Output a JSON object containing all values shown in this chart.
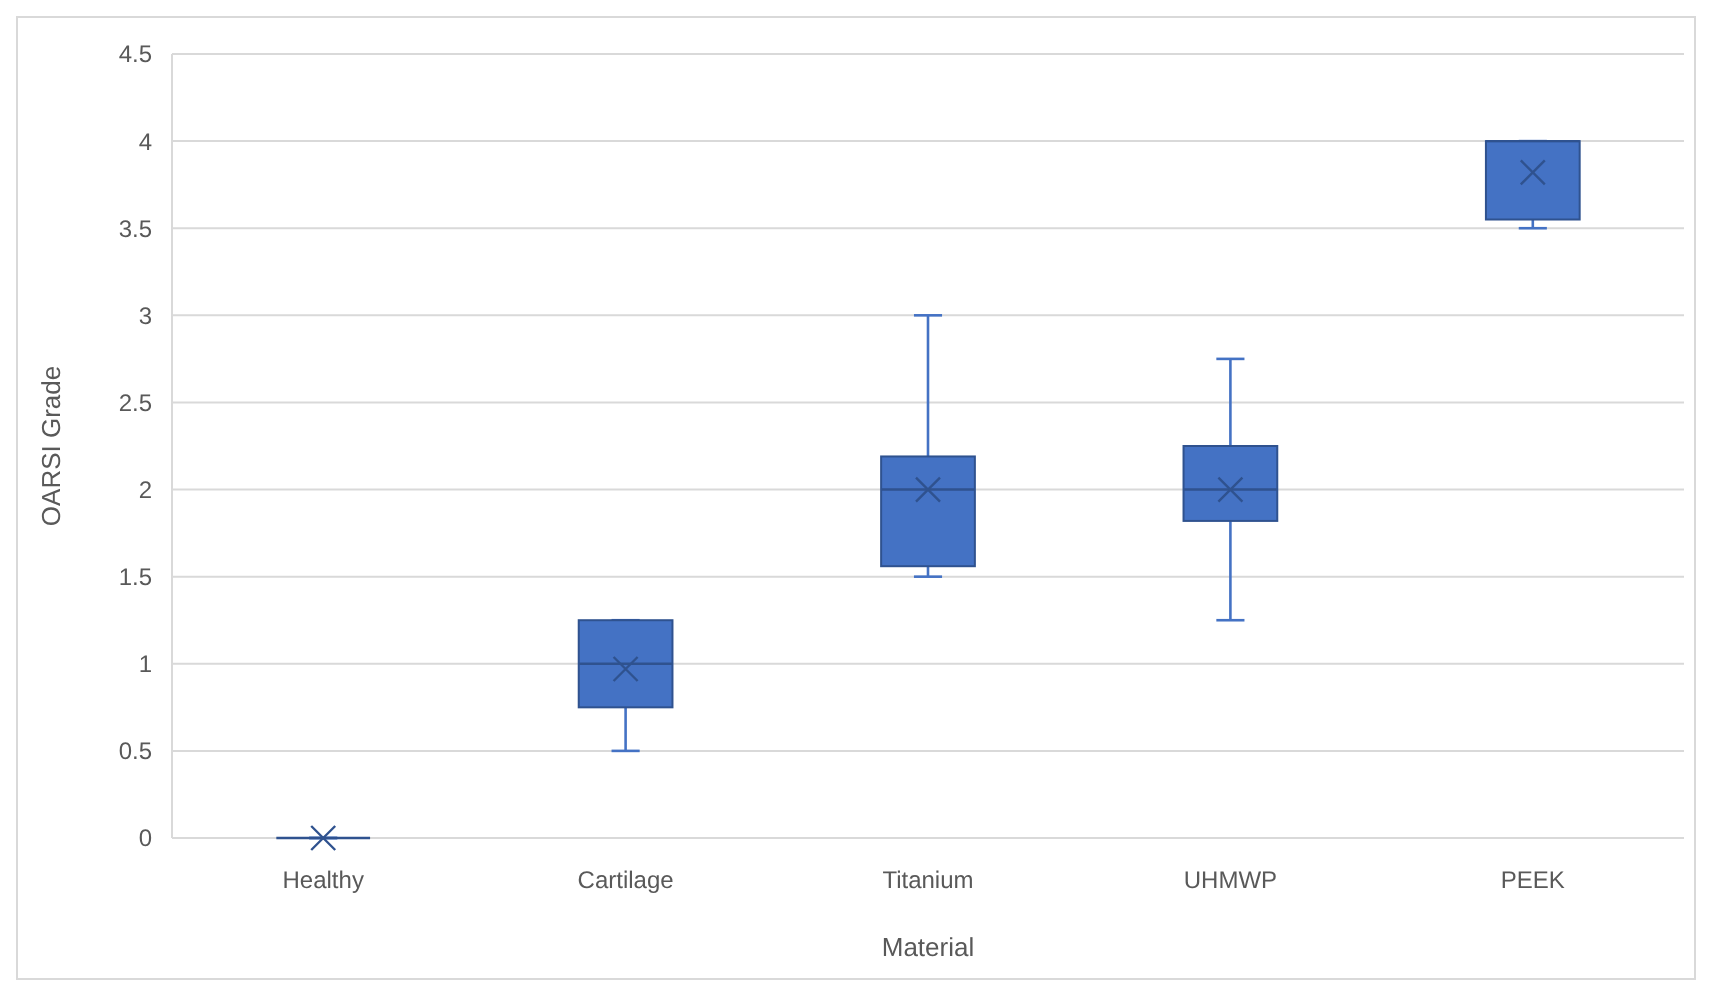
{
  "chart_data": {
    "type": "box",
    "xlabel": "Material",
    "ylabel": "OARSI Grade",
    "categories": [
      "Healthy",
      "Cartilage",
      "Titanium",
      "UHMWP",
      "PEEK"
    ],
    "series": [
      {
        "color": "#4472c4",
        "boxes": [
          {
            "low": 0,
            "q1": 0,
            "median": 0,
            "q3": 0,
            "high": 0,
            "mean": 0
          },
          {
            "low": 0.5,
            "q1": 0.75,
            "median": 1,
            "q3": 1.25,
            "high": 1.25,
            "mean": 0.97
          },
          {
            "low": 1.5,
            "q1": 1.56,
            "median": 2,
            "q3": 2.19,
            "high": 3,
            "mean": 2
          },
          {
            "low": 1.25,
            "q1": 1.82,
            "median": 2,
            "q3": 2.25,
            "high": 2.75,
            "mean": 2
          },
          {
            "low": 3.5,
            "q1": 3.55,
            "median": 4,
            "q3": 4,
            "high": 4,
            "mean": 3.82
          }
        ]
      }
    ],
    "ylim": [
      0,
      4.5
    ],
    "yticks": [
      0,
      0.5,
      1,
      1.5,
      2,
      2.5,
      3,
      3.5,
      4,
      4.5
    ],
    "grid": "y"
  }
}
